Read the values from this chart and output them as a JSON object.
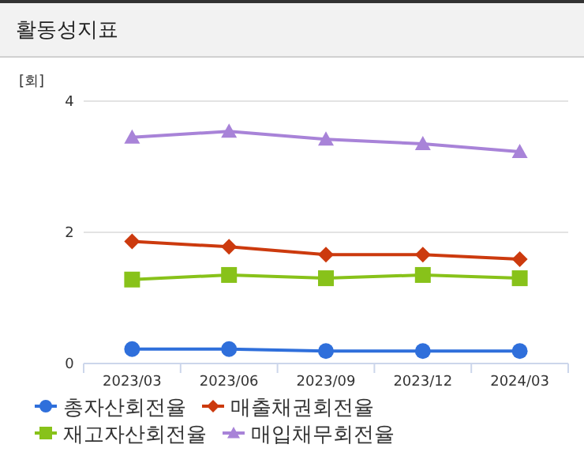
{
  "chart_data": {
    "type": "line",
    "title": "활동성지표",
    "ylabel": "[회]",
    "categories": [
      "2023/03",
      "2023/06",
      "2023/09",
      "2023/12",
      "2024/03"
    ],
    "ylim": [
      0,
      4
    ],
    "yticks": [
      0,
      2,
      4
    ],
    "grid": "y",
    "legend": "bottom",
    "series": [
      {
        "name": "총자산회전율",
        "color": "#2f6fdb",
        "marker": "circle",
        "values": [
          0.22,
          0.22,
          0.19,
          0.19,
          0.19
        ]
      },
      {
        "name": "매출채권회전율",
        "color": "#cc3a0e",
        "marker": "diamond",
        "values": [
          1.86,
          1.78,
          1.66,
          1.66,
          1.59
        ]
      },
      {
        "name": "재고자산회전율",
        "color": "#88c21a",
        "marker": "square",
        "values": [
          1.28,
          1.35,
          1.3,
          1.35,
          1.3
        ]
      },
      {
        "name": "매입채무회전율",
        "color": "#a883d8",
        "marker": "triangle",
        "values": [
          3.45,
          3.54,
          3.42,
          3.35,
          3.23
        ]
      }
    ]
  }
}
